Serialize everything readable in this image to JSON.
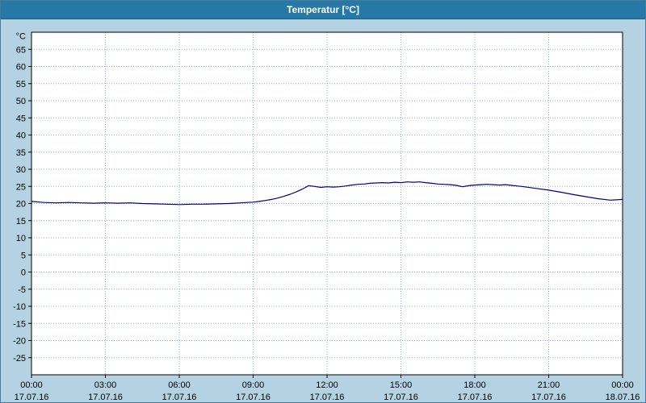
{
  "window": {
    "title": "Temperatur [°C]"
  },
  "colors": {
    "title_bar_bg": "#2679a4",
    "title_text": "#ffffff",
    "canvas_bg": "#b5d2e3",
    "plot_bg": "#ffffff",
    "grid": "#94aecb",
    "axis": "#000000",
    "line": "#000080"
  },
  "chart_data": {
    "type": "line",
    "title": "Temperatur [°C]",
    "y_unit_label": "°C",
    "ylim": [
      -30,
      70
    ],
    "yticks": [
      65,
      60,
      55,
      50,
      45,
      40,
      35,
      30,
      25,
      20,
      15,
      10,
      5,
      0,
      -5,
      -10,
      -15,
      -20,
      -25
    ],
    "xlim_hours": [
      0,
      24
    ],
    "xticks": [
      {
        "hour": 0,
        "time": "00:00",
        "date": "17.07.16"
      },
      {
        "hour": 3,
        "time": "03:00",
        "date": "17.07.16"
      },
      {
        "hour": 6,
        "time": "06:00",
        "date": "17.07.16"
      },
      {
        "hour": 9,
        "time": "09:00",
        "date": "17.07.16"
      },
      {
        "hour": 12,
        "time": "12:00",
        "date": "17.07.16"
      },
      {
        "hour": 15,
        "time": "15:00",
        "date": "17.07.16"
      },
      {
        "hour": 18,
        "time": "18:00",
        "date": "17.07.16"
      },
      {
        "hour": 21,
        "time": "21:00",
        "date": "17.07.16"
      },
      {
        "hour": 24,
        "time": "00:00",
        "date": "18.07.16"
      }
    ],
    "grid": true,
    "legend": "none",
    "series": [
      {
        "name": "Temperatur",
        "color": "#000080",
        "x": [
          0,
          0.5,
          1,
          1.5,
          2,
          2.5,
          3,
          3.5,
          4,
          4.5,
          5,
          5.5,
          6,
          6.5,
          7,
          7.5,
          8,
          8.25,
          8.5,
          8.75,
          9,
          9.25,
          9.5,
          9.75,
          10,
          10.25,
          10.5,
          10.75,
          11,
          11.25,
          11.5,
          11.75,
          12,
          12.25,
          12.5,
          12.75,
          13,
          13.25,
          13.5,
          13.75,
          14,
          14.25,
          14.5,
          14.75,
          15,
          15.25,
          15.5,
          15.75,
          16,
          16.25,
          16.5,
          16.75,
          17,
          17.25,
          17.5,
          17.75,
          18,
          18.25,
          18.5,
          18.75,
          19,
          19.25,
          19.5,
          19.75,
          20,
          20.5,
          21,
          21.5,
          22,
          22.5,
          23,
          23.5,
          24
        ],
        "y": [
          20.6,
          20.3,
          20.2,
          20.3,
          20.2,
          20.1,
          20.2,
          20.1,
          20.2,
          20.0,
          19.9,
          19.8,
          19.7,
          19.8,
          19.8,
          19.9,
          20.0,
          20.1,
          20.2,
          20.3,
          20.4,
          20.6,
          20.9,
          21.2,
          21.6,
          22.1,
          22.7,
          23.4,
          24.2,
          25.2,
          25.0,
          24.7,
          24.9,
          24.8,
          24.9,
          25.1,
          25.4,
          25.6,
          25.7,
          25.9,
          26.0,
          26.1,
          26.0,
          26.2,
          26.1,
          26.3,
          26.2,
          26.3,
          26.1,
          25.9,
          25.7,
          25.6,
          25.5,
          25.3,
          24.9,
          25.2,
          25.4,
          25.5,
          25.6,
          25.5,
          25.4,
          25.5,
          25.3,
          25.1,
          24.9,
          24.4,
          23.9,
          23.3,
          22.6,
          22.0,
          21.4,
          21.0,
          21.2
        ]
      }
    ]
  }
}
